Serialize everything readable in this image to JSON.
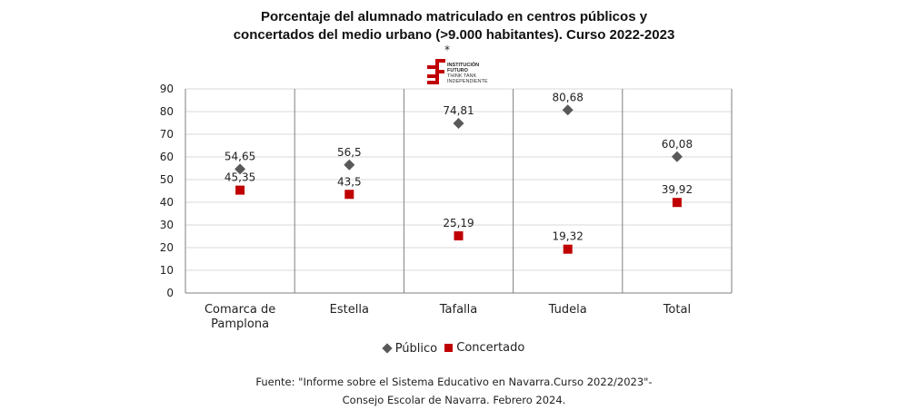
{
  "title": {
    "line1": "Porcentaje del alumnado matriculado en centros públicos y",
    "line2": "concertados del medio urbano (>9.000  habitantes). Curso 2022-2023"
  },
  "logo": {
    "asterisk": "*",
    "line1": "INSTITUCIÓN",
    "line2": "FUTURO",
    "line3": "THINK TANK",
    "line4": "INDEPENDIENTE",
    "color": "#c00000"
  },
  "chart_data": {
    "type": "scatter",
    "categories": [
      "Comarca de Pamplona",
      "Estella",
      "Tafalla",
      "Tudela",
      "Total"
    ],
    "category_lines": [
      [
        "Comarca de",
        "Pamplona"
      ],
      [
        "Estella"
      ],
      [
        "Tafalla"
      ],
      [
        "Tudela"
      ],
      [
        "Total"
      ]
    ],
    "series": [
      {
        "name": "Público",
        "values": [
          54.65,
          56.5,
          74.81,
          80.68,
          60.08
        ],
        "labels": [
          "54,65",
          "56,5",
          "74,81",
          "80,68",
          "60,08"
        ],
        "color": "#595959",
        "marker": "diamond"
      },
      {
        "name": "Concertado",
        "values": [
          45.35,
          43.5,
          25.19,
          19.32,
          39.92
        ],
        "labels": [
          "45,35",
          "43,5",
          "25,19",
          "19,32",
          "39,92"
        ],
        "color": "#c00000",
        "marker": "square"
      }
    ],
    "ylim": [
      0,
      90
    ],
    "yticks": [
      0,
      10,
      20,
      30,
      40,
      50,
      60,
      70,
      80,
      90
    ],
    "grid": true,
    "legend": "bottom"
  },
  "source": {
    "line1": "Fuente: \"Informe sobre el Sistema Educativo en Navarra.Curso 2022/2023\"-",
    "line2": "Consejo Escolar de Navarra. Febrero 2024."
  }
}
